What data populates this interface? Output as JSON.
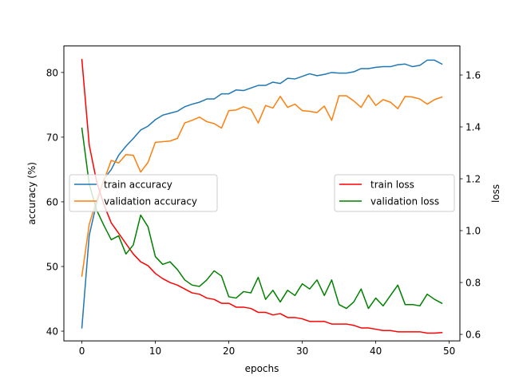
{
  "chart_data": {
    "type": "line",
    "title": "",
    "xlabel": "epochs",
    "ylabel_left": "accuracy (%)",
    "ylabel_right": "loss",
    "xlim": [
      -2.45,
      51.45
    ],
    "ylim_left": [
      38.5,
      84.1
    ],
    "ylim_right": [
      0.575,
      1.712
    ],
    "x_ticks": [
      0,
      10,
      20,
      30,
      40,
      50
    ],
    "y_ticks_left": [
      40,
      50,
      60,
      70,
      80
    ],
    "y_ticks_right": [
      0.6,
      0.8,
      1.0,
      1.2,
      1.4,
      1.6
    ],
    "right_tick_labels": [
      "0.6",
      "0.8",
      "1.0",
      "1.2",
      "1.4",
      "1.6"
    ],
    "grid": false,
    "x": [
      0,
      1,
      2,
      3,
      4,
      5,
      6,
      7,
      8,
      9,
      10,
      11,
      12,
      13,
      14,
      15,
      16,
      17,
      18,
      19,
      20,
      21,
      22,
      23,
      24,
      25,
      26,
      27,
      28,
      29,
      30,
      31,
      32,
      33,
      34,
      35,
      36,
      37,
      38,
      39,
      40,
      41,
      42,
      43,
      44,
      45,
      46,
      47,
      48,
      49
    ],
    "series_left": [
      {
        "name": "train accuracy",
        "color": "#1f77b4",
        "values": [
          40.5,
          54.8,
          59.8,
          63.5,
          65.0,
          67.2,
          68.6,
          69.8,
          71.1,
          71.7,
          72.7,
          73.4,
          73.7,
          74.0,
          74.7,
          75.1,
          75.4,
          75.9,
          75.9,
          76.7,
          76.7,
          77.3,
          77.2,
          77.6,
          78.0,
          78.0,
          78.5,
          78.3,
          79.1,
          79.0,
          79.4,
          79.8,
          79.5,
          79.7,
          80.0,
          79.9,
          79.9,
          80.1,
          80.6,
          80.6,
          80.8,
          80.9,
          80.9,
          81.2,
          81.3,
          80.9,
          81.1,
          81.9,
          81.9,
          81.3
        ]
      },
      {
        "name": "validation accuracy",
        "color": "#ff7f0e",
        "values": [
          48.5,
          56.5,
          60.3,
          63.3,
          66.4,
          66.0,
          67.3,
          67.2,
          64.6,
          66.1,
          69.2,
          69.3,
          69.4,
          69.8,
          72.2,
          72.6,
          73.1,
          72.4,
          72.1,
          71.4,
          74.1,
          74.2,
          74.7,
          74.3,
          72.2,
          74.9,
          74.5,
          76.3,
          74.6,
          75.1,
          74.1,
          74.0,
          73.8,
          74.8,
          72.6,
          76.4,
          76.4,
          75.6,
          74.6,
          76.5,
          74.9,
          75.8,
          75.4,
          74.4,
          76.3,
          76.2,
          75.9,
          75.1,
          75.8,
          76.2
        ]
      }
    ],
    "series_right": [
      {
        "name": "train loss",
        "color": "#ff0000",
        "values": [
          1.66,
          1.33,
          1.19,
          1.1,
          1.03,
          0.99,
          0.95,
          0.91,
          0.88,
          0.865,
          0.835,
          0.815,
          0.8,
          0.79,
          0.775,
          0.76,
          0.755,
          0.74,
          0.735,
          0.72,
          0.72,
          0.705,
          0.705,
          0.7,
          0.685,
          0.685,
          0.675,
          0.68,
          0.665,
          0.665,
          0.66,
          0.65,
          0.65,
          0.65,
          0.64,
          0.64,
          0.64,
          0.635,
          0.625,
          0.625,
          0.62,
          0.615,
          0.615,
          0.61,
          0.61,
          0.61,
          0.61,
          0.605,
          0.605,
          0.607
        ]
      },
      {
        "name": "validation loss",
        "color": "#008000",
        "values": [
          1.395,
          1.18,
          1.08,
          1.02,
          0.965,
          0.98,
          0.91,
          0.945,
          1.06,
          1.015,
          0.9,
          0.87,
          0.88,
          0.85,
          0.81,
          0.79,
          0.785,
          0.81,
          0.845,
          0.825,
          0.745,
          0.74,
          0.765,
          0.76,
          0.82,
          0.735,
          0.77,
          0.725,
          0.77,
          0.75,
          0.795,
          0.775,
          0.81,
          0.75,
          0.81,
          0.715,
          0.7,
          0.725,
          0.775,
          0.7,
          0.74,
          0.71,
          0.75,
          0.79,
          0.715,
          0.715,
          0.71,
          0.755,
          0.735,
          0.72
        ]
      }
    ],
    "legend_left": {
      "placement": "center-left",
      "items": [
        "train accuracy",
        "validation accuracy"
      ]
    },
    "legend_right": {
      "placement": "center-right",
      "items": [
        "train loss",
        "validation loss"
      ]
    }
  }
}
